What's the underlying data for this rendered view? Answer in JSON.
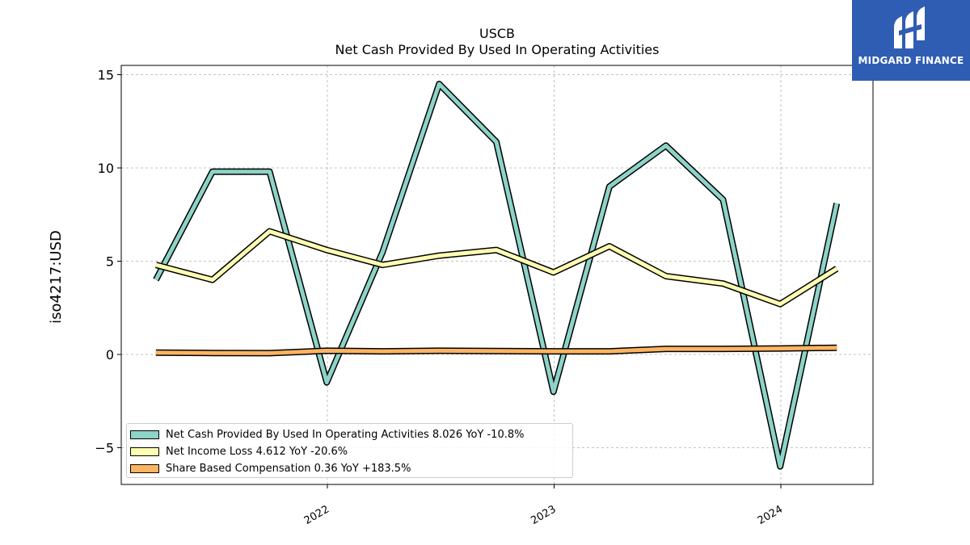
{
  "chart_data": {
    "type": "line",
    "title": "USCB",
    "subtitle": "Net Cash Provided By Used In Operating Activities",
    "ylabel": "iso4217:USD",
    "xlabel": "",
    "x": [
      "2021-03-31",
      "2021-06-30",
      "2021-09-30",
      "2021-12-31",
      "2022-03-31",
      "2022-06-30",
      "2022-09-30",
      "2022-12-31",
      "2023-03-31",
      "2023-06-30",
      "2023-09-30",
      "2023-12-31",
      "2024-03-31"
    ],
    "x_ticks": [
      "2022",
      "2023",
      "2024"
    ],
    "y_ticks": [
      "15",
      "10",
      "5",
      "0",
      "−5"
    ],
    "ylim": [
      -7,
      15.5
    ],
    "grid": true,
    "legend_position": "lower-left",
    "series": [
      {
        "name": "Net Cash Provided By Used In Operating Activities",
        "legend": "Net Cash Provided By Used In Operating Activities  8.026 YoY -10.8%",
        "color": "#8dd3c7",
        "values": [
          4.0,
          9.8,
          9.8,
          -1.5,
          5.5,
          14.5,
          11.4,
          -2.0,
          9.0,
          11.2,
          8.3,
          -6.0,
          8.1
        ]
      },
      {
        "name": "Net Income Loss",
        "legend": "Net Income Loss  4.612 YoY -20.6%",
        "color": "#ffffb3",
        "values": [
          4.8,
          4.0,
          6.6,
          5.6,
          4.8,
          5.3,
          5.6,
          4.4,
          5.8,
          4.2,
          3.8,
          2.7,
          4.6
        ]
      },
      {
        "name": "Share Based Compensation",
        "legend": "Share Based Compensation  0.36 YoY +183.5%",
        "color": "#fdb462",
        "values": [
          0.1,
          0.08,
          0.07,
          0.2,
          0.17,
          0.2,
          0.18,
          0.17,
          0.17,
          0.3,
          0.3,
          0.32,
          0.36
        ]
      }
    ]
  },
  "logo": {
    "text": "MIDGARD FINANCE",
    "color": "#2f5db3"
  }
}
